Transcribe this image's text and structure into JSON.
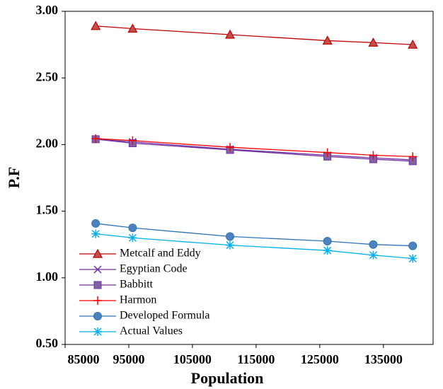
{
  "chart_data": {
    "type": "line",
    "x_label": "Population",
    "y_label": "P.F",
    "x": [
      89800,
      95600,
      110900,
      126200,
      133400,
      139600
    ],
    "series": [
      {
        "name": "Metcalf and Eddy",
        "color": "#c00000",
        "marker": "triangle",
        "marker_color": "#c0504d",
        "values": [
          2.89,
          2.87,
          2.825,
          2.78,
          2.765,
          2.75
        ]
      },
      {
        "name": "Egyptian Code",
        "color": "#7030a0",
        "marker": "x",
        "marker_color": "#7030a0",
        "values": [
          2.04,
          2.02,
          1.965,
          1.92,
          1.9,
          1.885
        ]
      },
      {
        "name": "Babbitt",
        "color": "#7030a0",
        "marker": "square",
        "marker_color": "#8064a2",
        "values": [
          2.04,
          2.01,
          1.96,
          1.91,
          1.89,
          1.875
        ]
      },
      {
        "name": "Harmon",
        "color": "#ff0000",
        "marker": "plus",
        "marker_color": "#ff0000",
        "values": [
          2.045,
          2.03,
          1.98,
          1.94,
          1.92,
          1.91
        ]
      },
      {
        "name": "Developed Formula",
        "color": "#2e75b6",
        "marker": "circle",
        "marker_color": "#4f81bd",
        "values": [
          1.408,
          1.375,
          1.31,
          1.275,
          1.25,
          1.24
        ]
      },
      {
        "name": "Actual Values",
        "color": "#00b0f0",
        "marker": "star",
        "marker_color": "#00b0f0",
        "values": [
          1.33,
          1.3,
          1.245,
          1.205,
          1.17,
          1.145
        ]
      }
    ],
    "xlim": [
      85000,
      142800
    ],
    "xticks": [
      85000,
      95000,
      105000,
      115000,
      125000,
      135000
    ],
    "ylim": [
      0.5,
      3.0
    ],
    "yticks": [
      {
        "value": 0.5,
        "label": "0.50"
      },
      {
        "value": 1.0,
        "label": "1.00"
      },
      {
        "value": 1.5,
        "label": "1.50"
      },
      {
        "value": 2.0,
        "label": "2.00"
      },
      {
        "value": 2.5,
        "label": "2.50"
      },
      {
        "value": 3.0,
        "label": "3.00"
      }
    ],
    "grid": false,
    "legend": "lower left"
  }
}
